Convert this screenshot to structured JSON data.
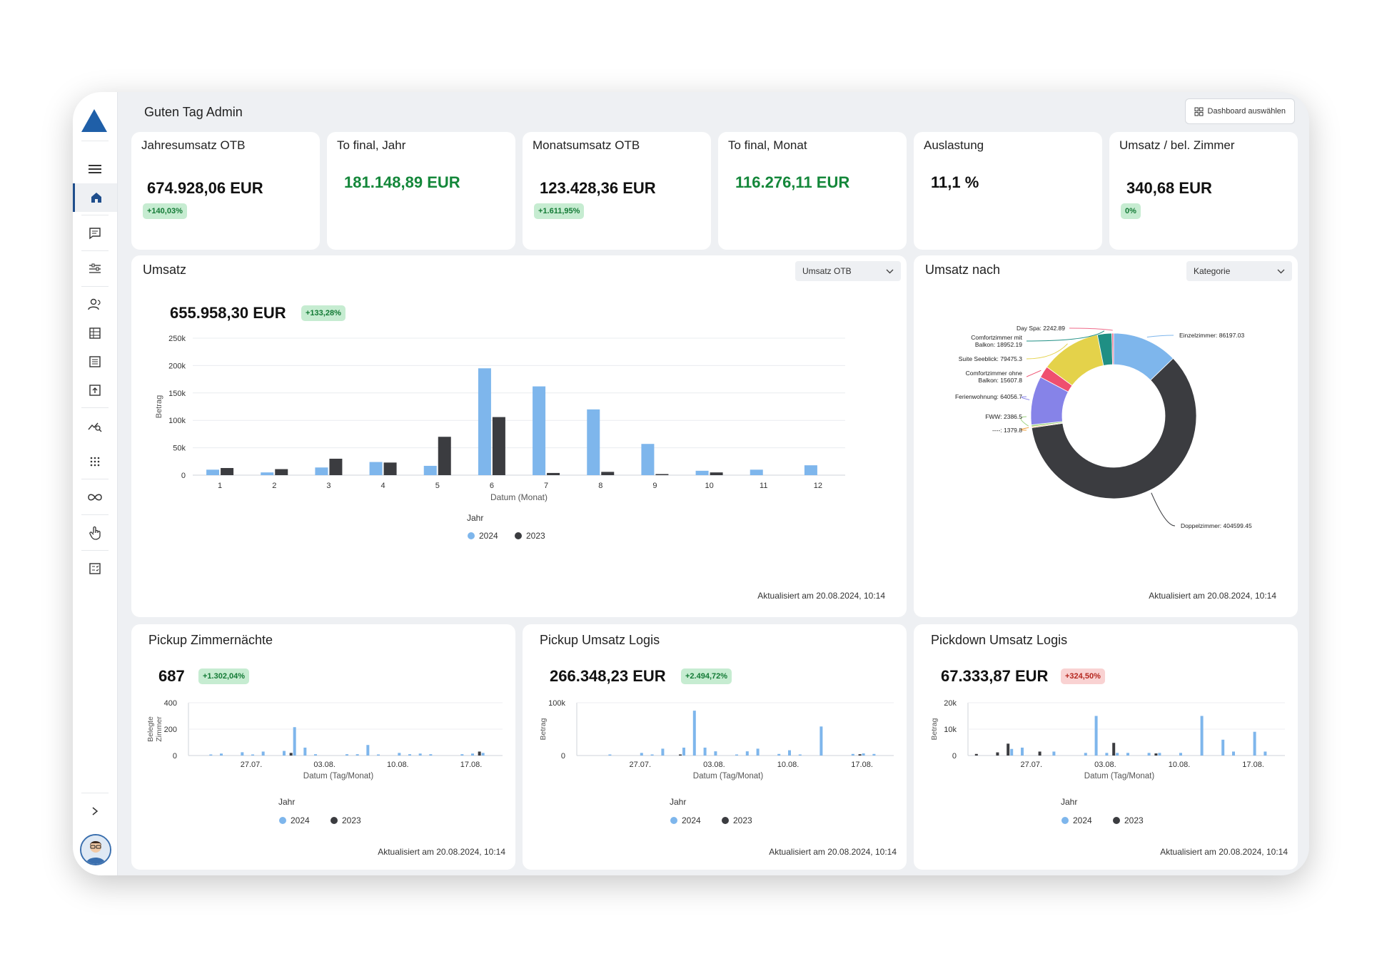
{
  "colors": {
    "series2024": "#7eb6ec",
    "series2023": "#3b3c40",
    "accent": "#1f4e8c",
    "green": "#14873a"
  },
  "greeting": "Guten Tag Admin",
  "dashboard_button": "Dashboard auswählen",
  "kpis": [
    {
      "title": "Jahresumsatz OTB",
      "value": "674.928,06 EUR",
      "badge": "+140,03%"
    },
    {
      "title": "To final, Jahr",
      "value": "181.148,89 EUR"
    },
    {
      "title": "Monatsumsatz OTB",
      "value": "123.428,36 EUR",
      "badge": "+1.611,95%"
    },
    {
      "title": "To final, Monat",
      "value": "116.276,11 EUR"
    },
    {
      "title": "Auslastung",
      "value": "11,1 %"
    },
    {
      "title": "Umsatz / bel. Zimmer",
      "value": "340,68 EUR",
      "badge": "0%"
    }
  ],
  "umsatz": {
    "title": "Umsatz",
    "select": "Umsatz OTB",
    "value": "655.958,30 EUR",
    "badge": "+133,28%",
    "updated": "Aktualisiert am 20.08.2024, 10:14"
  },
  "umsatz_nach": {
    "title": "Umsatz nach",
    "select": "Kategorie",
    "updated": "Aktualisiert am 20.08.2024, 10:14"
  },
  "pickup_zimmer": {
    "title": "Pickup Zimmernächte",
    "value": "687",
    "badge": "+1.302,04%",
    "updated": "Aktualisiert am 20.08.2024, 10:14"
  },
  "pickup_umsatz": {
    "title": "Pickup Umsatz Logis",
    "value": "266.348,23 EUR",
    "badge": "+2.494,72%",
    "updated": "Aktualisiert am 20.08.2024, 10:14"
  },
  "pickdown_umsatz": {
    "title": "Pickdown Umsatz Logis",
    "value": "67.333,87 EUR",
    "badge": "+324,50%",
    "updated": "Aktualisiert am 20.08.2024, 10:14"
  },
  "chart_data": [
    {
      "type": "bar",
      "categories": [
        "1",
        "2",
        "3",
        "4",
        "5",
        "6",
        "7",
        "8",
        "9",
        "10",
        "11",
        "12"
      ],
      "series": [
        {
          "name": "2024",
          "values": [
            10000,
            5000,
            14000,
            24000,
            17000,
            195000,
            162000,
            120000,
            57000,
            8000,
            10000,
            18000
          ]
        },
        {
          "name": "2023",
          "values": [
            13000,
            11000,
            30000,
            23000,
            70000,
            106000,
            4000,
            6000,
            2000,
            5000,
            0,
            0
          ]
        }
      ],
      "xlabel": "Datum (Monat)",
      "ylabel": "Betrag",
      "ylim": [
        0,
        250000
      ],
      "yticks": [
        "0",
        "50k",
        "100k",
        "150k",
        "200k",
        "250k"
      ],
      "legend_title": "Jahr",
      "legend": "bottom",
      "grid": true
    },
    {
      "type": "pie",
      "donut": true,
      "slices": [
        {
          "label": "Einzelzimmer: 86197.03",
          "value": 86197.03,
          "color": "#7eb6ec"
        },
        {
          "label": "Doppelzimmer: 404599.45",
          "value": 404599.45,
          "color": "#3b3c40"
        },
        {
          "label": "----: 1379.8",
          "value": 1379.8,
          "color": "#f2a03d"
        },
        {
          "label": "FWW: 2386.5",
          "value": 2386.5,
          "color": "#9ad17b"
        },
        {
          "label": "Ferienwohnung: 64056.7",
          "value": 64056.7,
          "color": "#8683e8"
        },
        {
          "label": "Comfortzimmer ohne Balkon: 15607.8",
          "value": 15607.8,
          "color": "#ef4f6f"
        },
        {
          "label": "Suite Seeblick: 79475.3",
          "value": 79475.3,
          "color": "#e4d24a"
        },
        {
          "label": "Comfortzimmer mit Balkon: 18952.19",
          "value": 18952.19,
          "color": "#1f8f84"
        },
        {
          "label": "Day Spa: 2242.89",
          "value": 2242.89,
          "color": "#ef6b8a"
        }
      ]
    },
    {
      "type": "bar",
      "name": "Pickup Zimmernächte",
      "xlabel": "Datum (Tag/Monat)",
      "ylabel": "Belegte Zimmer",
      "ylim": [
        0,
        400
      ],
      "yticks": [
        "0",
        "200",
        "400"
      ],
      "xticks": [
        "27.07.",
        "03.08.",
        "10.08.",
        "17.08."
      ],
      "xtick_positions": [
        6,
        13,
        20,
        27
      ],
      "days": 30,
      "series": [
        {
          "name": "2024",
          "points": [
            [
              2,
              5
            ],
            [
              3,
              15
            ],
            [
              5,
              25
            ],
            [
              6,
              5
            ],
            [
              7,
              30
            ],
            [
              9,
              35
            ],
            [
              10,
              215
            ],
            [
              11,
              60
            ],
            [
              12,
              10
            ],
            [
              15,
              10
            ],
            [
              16,
              10
            ],
            [
              17,
              80
            ],
            [
              18,
              5
            ],
            [
              20,
              20
            ],
            [
              21,
              10
            ],
            [
              22,
              15
            ],
            [
              23,
              10
            ],
            [
              26,
              10
            ],
            [
              27,
              15
            ],
            [
              28,
              20
            ]
          ]
        },
        {
          "name": "2023",
          "points": [
            [
              10,
              20
            ],
            [
              28,
              30
            ]
          ]
        }
      ],
      "legend_title": "Jahr",
      "legend": "bottom"
    },
    {
      "type": "bar",
      "name": "Pickup Umsatz Logis",
      "xlabel": "Datum (Tag/Monat)",
      "ylabel": "Betrag",
      "ylim": [
        0,
        100000
      ],
      "yticks": [
        "0",
        "100k"
      ],
      "xticks": [
        "27.07.",
        "03.08.",
        "10.08.",
        "17.08."
      ],
      "xtick_positions": [
        6,
        13,
        20,
        27
      ],
      "days": 30,
      "series": [
        {
          "name": "2024",
          "points": [
            [
              3,
              1000
            ],
            [
              6,
              5000
            ],
            [
              7,
              2000
            ],
            [
              8,
              13000
            ],
            [
              10,
              15000
            ],
            [
              11,
              85000
            ],
            [
              12,
              15000
            ],
            [
              13,
              8000
            ],
            [
              15,
              2000
            ],
            [
              16,
              8000
            ],
            [
              17,
              13000
            ],
            [
              19,
              3000
            ],
            [
              20,
              10000
            ],
            [
              21,
              2000
            ],
            [
              23,
              55000
            ],
            [
              26,
              3000
            ],
            [
              27,
              4000
            ],
            [
              28,
              3000
            ]
          ]
        },
        {
          "name": "2023",
          "points": [
            [
              10,
              2000
            ],
            [
              27,
              2500
            ]
          ]
        }
      ],
      "legend_title": "Jahr",
      "legend": "bottom"
    },
    {
      "type": "bar",
      "name": "Pickdown Umsatz Logis",
      "xlabel": "Datum (Tag/Monat)",
      "ylabel": "Betrag",
      "ylim": [
        0,
        20000
      ],
      "yticks": [
        "0",
        "10k",
        "20k"
      ],
      "xticks": [
        "27.07.",
        "03.08.",
        "10.08.",
        "17.08."
      ],
      "xtick_positions": [
        6,
        13,
        20,
        27
      ],
      "days": 30,
      "series": [
        {
          "name": "2024",
          "points": [
            [
              4,
              2500
            ],
            [
              5,
              3000
            ],
            [
              8,
              1500
            ],
            [
              11,
              1000
            ],
            [
              12,
              15000
            ],
            [
              13,
              1000
            ],
            [
              14,
              1000
            ],
            [
              15,
              1000
            ],
            [
              17,
              1000
            ],
            [
              18,
              1000
            ],
            [
              20,
              1000
            ],
            [
              22,
              15000
            ],
            [
              24,
              6000
            ],
            [
              25,
              1500
            ],
            [
              27,
              9000
            ],
            [
              28,
              1500
            ]
          ]
        },
        {
          "name": "2023",
          "points": [
            [
              1,
              600
            ],
            [
              3,
              1200
            ],
            [
              4,
              4500
            ],
            [
              7,
              1500
            ],
            [
              14,
              4800
            ],
            [
              18,
              800
            ]
          ]
        }
      ],
      "legend_title": "Jahr",
      "legend": "bottom"
    }
  ],
  "legend_labels": [
    "2024",
    "2023"
  ]
}
